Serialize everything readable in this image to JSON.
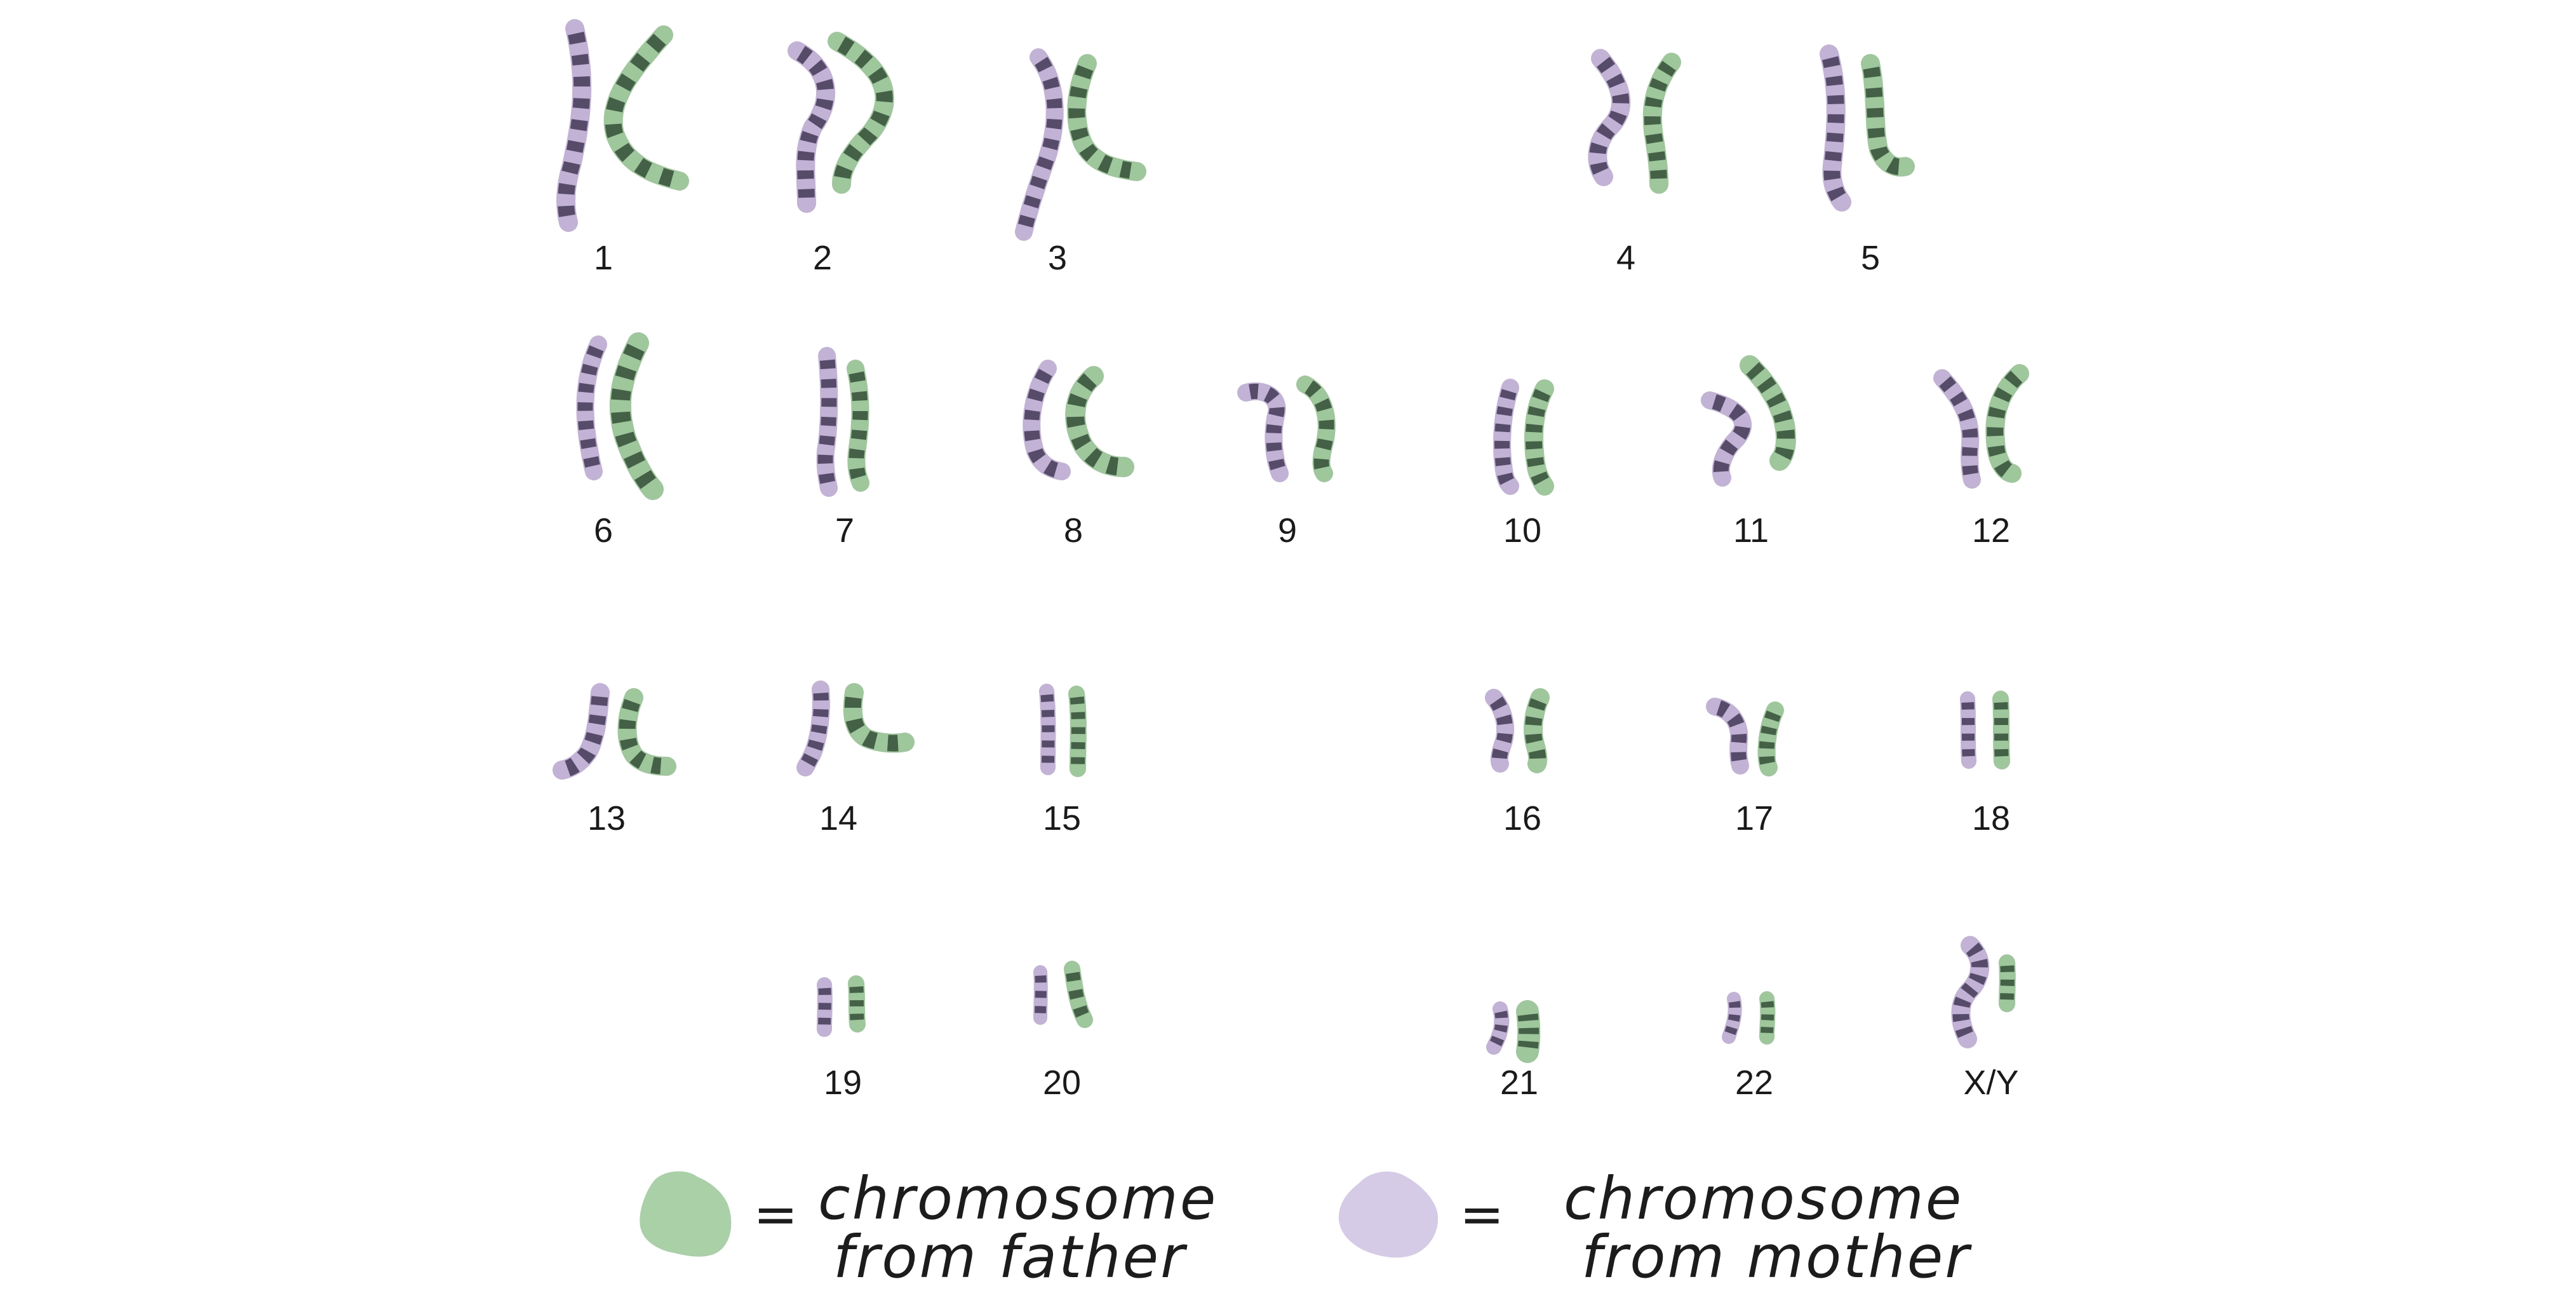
{
  "colors": {
    "father": "#9fc79c",
    "father_band": "#2f4a34",
    "mother": "#c2b2d6",
    "mother_band": "#3e3650",
    "label": "#1a1a1a"
  },
  "pairs": [
    {
      "id": "1",
      "label": "1"
    },
    {
      "id": "2",
      "label": "2"
    },
    {
      "id": "3",
      "label": "3"
    },
    {
      "id": "4",
      "label": "4"
    },
    {
      "id": "5",
      "label": "5"
    },
    {
      "id": "6",
      "label": "6"
    },
    {
      "id": "7",
      "label": "7"
    },
    {
      "id": "8",
      "label": "8"
    },
    {
      "id": "9",
      "label": "9"
    },
    {
      "id": "10",
      "label": "10"
    },
    {
      "id": "11",
      "label": "11"
    },
    {
      "id": "12",
      "label": "12"
    },
    {
      "id": "13",
      "label": "13"
    },
    {
      "id": "14",
      "label": "14"
    },
    {
      "id": "15",
      "label": "15"
    },
    {
      "id": "16",
      "label": "16"
    },
    {
      "id": "17",
      "label": "17"
    },
    {
      "id": "18",
      "label": "18"
    },
    {
      "id": "19",
      "label": "19"
    },
    {
      "id": "20",
      "label": "20"
    },
    {
      "id": "21",
      "label": "21"
    },
    {
      "id": "22",
      "label": "22"
    },
    {
      "id": "xy",
      "label": "X/Y"
    }
  ],
  "legend": {
    "father": {
      "equals": "=",
      "line1": "chromosome",
      "line2": "from father"
    },
    "mother": {
      "equals": "=",
      "line1": "chromosome",
      "line2": "from mother"
    }
  }
}
